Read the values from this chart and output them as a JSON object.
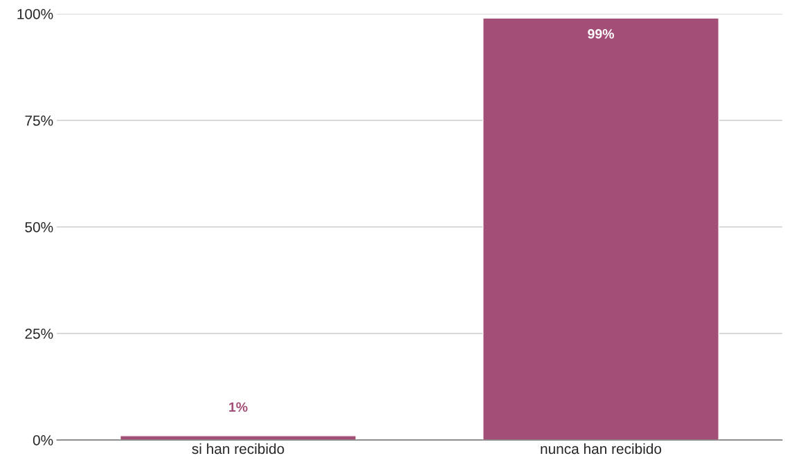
{
  "chart_data": {
    "type": "bar",
    "categories": [
      "si han recibido",
      "nunca han recibido"
    ],
    "values": [
      1,
      99
    ],
    "value_labels": [
      "1%",
      "99%"
    ],
    "color": "#a34e76",
    "ylim": [
      0,
      100
    ],
    "yticks": [
      {
        "value": 0,
        "label": "0%"
      },
      {
        "value": 25,
        "label": "25%"
      },
      {
        "value": 50,
        "label": "50%"
      },
      {
        "value": 75,
        "label": "75%"
      },
      {
        "value": 100,
        "label": "100%"
      }
    ],
    "grid": "y",
    "legend": false
  }
}
